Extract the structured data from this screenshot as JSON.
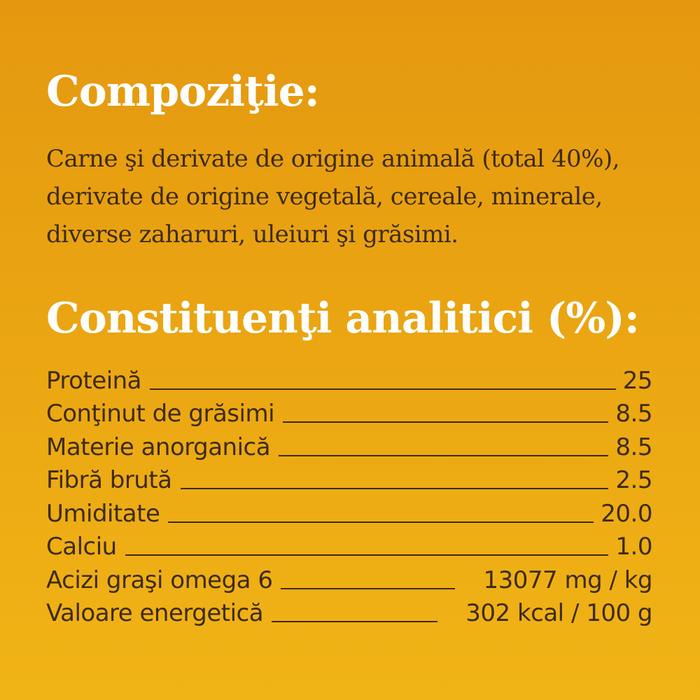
{
  "composition": {
    "heading": "Compoziţie:",
    "lines": [
      "Carne şi derivate de origine animală (total 40%),",
      "derivate de origine vegetală, cereale, minerale,",
      "diverse zaharuri, uleiuri şi grăsimi."
    ]
  },
  "analytic": {
    "heading": "Constituenţi analitici (%):",
    "rows": [
      {
        "label": "Proteină",
        "value": "25"
      },
      {
        "label": "Conţinut de grăsimi",
        "value": "8.5"
      },
      {
        "label": "Materie anorganică",
        "value": "8.5"
      },
      {
        "label": "Fibră brută",
        "value": "2.5"
      },
      {
        "label": "Umiditate",
        "value": "20.0"
      },
      {
        "label": "Calciu",
        "value": "1.0"
      },
      {
        "label": "Acizi graşi omega 6",
        "value": "13077 mg / kg"
      },
      {
        "label": "Valoare energetică",
        "value": "302 kcal / 100 g"
      }
    ]
  }
}
